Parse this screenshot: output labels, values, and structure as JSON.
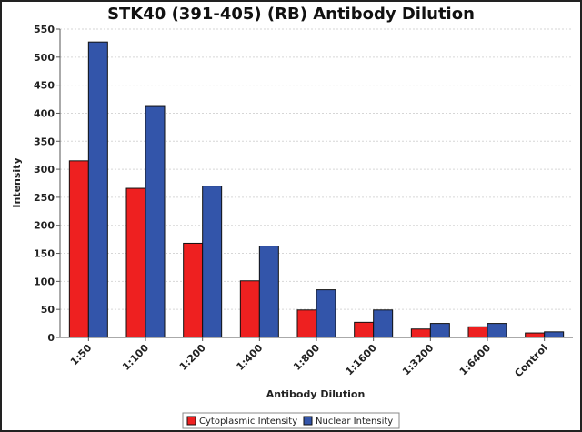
{
  "chart_data": {
    "type": "bar",
    "title": "STK40 (391-405) (RB) Antibody Dilution",
    "xlabel": "Antibody Dilution",
    "ylabel": "Intensity",
    "categories": [
      "1:50",
      "1:100",
      "1:200",
      "1:400",
      "1:800",
      "1:1600",
      "1:3200",
      "1:6400",
      "Control"
    ],
    "series": [
      {
        "name": "Cytoplasmic Intensity",
        "color": "#ee2020",
        "values": [
          315,
          266,
          168,
          101,
          49,
          27,
          15,
          19,
          8
        ]
      },
      {
        "name": "Nuclear Intensity",
        "color": "#3355aa",
        "values": [
          527,
          412,
          270,
          163,
          85,
          49,
          25,
          25,
          10
        ]
      }
    ],
    "ylim": [
      0,
      550
    ],
    "yticks": [
      0,
      50,
      100,
      150,
      200,
      250,
      300,
      350,
      400,
      450,
      500,
      550
    ],
    "grid": true,
    "legend_position": "bottom-center"
  }
}
